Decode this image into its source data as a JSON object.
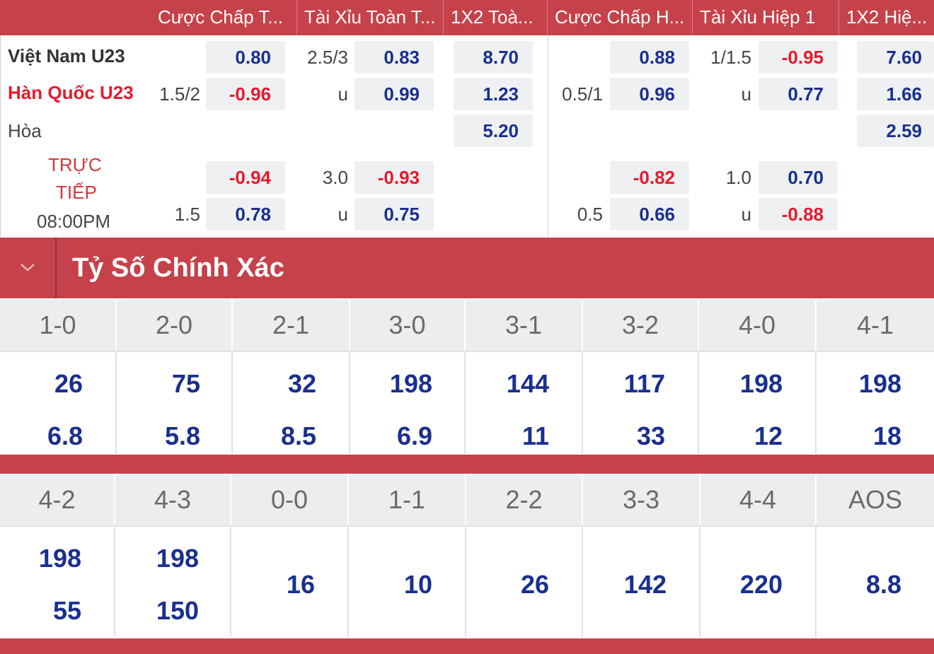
{
  "header": {
    "columns": [
      "Cược Chấp T...",
      "Tài Xỉu Toàn T...",
      "1X2 Toà...",
      "Cược Chấp H...",
      "Tài Xỉu Hiệp 1",
      "1X2 Hiệ..."
    ]
  },
  "match": {
    "home": "Việt Nam U23",
    "away": "Hàn Quốc U23",
    "draw_label": "Hòa",
    "status_line1": "TRỰC",
    "status_line2": "TIẾP",
    "time": "08:00PM",
    "ft_handicap_line": "1.5/2",
    "ft_handicap_home": "0.80",
    "ft_handicap_away": "-0.96",
    "ft_ou_line": "2.5/3",
    "ft_ou_over": "0.83",
    "ft_ou_u": "u",
    "ft_ou_under": "0.99",
    "ft_1x2_home": "8.70",
    "ft_1x2_away": "1.23",
    "ft_1x2_draw": "5.20",
    "h1_handicap_line": "0.5/1",
    "h1_handicap_home": "0.88",
    "h1_handicap_away": "0.96",
    "h1_ou_line": "1/1.5",
    "h1_ou_over": "-0.95",
    "h1_ou_u": "u",
    "h1_ou_under": "0.77",
    "h1_1x2_home": "7.60",
    "h1_1x2_away": "1.66",
    "h1_1x2_draw": "2.59",
    "alt": {
      "ft_handicap_line": "1.5",
      "ft_handicap_home": "-0.94",
      "ft_handicap_away": "0.78",
      "ft_ou_line": "3.0",
      "ft_ou_over": "-0.93",
      "ft_ou_u": "u",
      "ft_ou_under": "0.75",
      "h1_handicap_line": "0.5",
      "h1_handicap_home": "-0.82",
      "h1_handicap_away": "0.66",
      "h1_ou_line": "1.0",
      "h1_ou_over": "0.70",
      "h1_ou_u": "u",
      "h1_ou_under": "-0.88"
    }
  },
  "section": {
    "title": "Tỷ Số Chính Xác",
    "toggle_icon": "chevron-down-icon"
  },
  "correct_score": {
    "row1": [
      {
        "score": "1-0",
        "top": "26",
        "bottom": "6.8"
      },
      {
        "score": "2-0",
        "top": "75",
        "bottom": "5.8"
      },
      {
        "score": "2-1",
        "top": "32",
        "bottom": "8.5"
      },
      {
        "score": "3-0",
        "top": "198",
        "bottom": "6.9"
      },
      {
        "score": "3-1",
        "top": "144",
        "bottom": "11"
      },
      {
        "score": "3-2",
        "top": "117",
        "bottom": "33"
      },
      {
        "score": "4-0",
        "top": "198",
        "bottom": "12"
      },
      {
        "score": "4-1",
        "top": "198",
        "bottom": "18"
      }
    ],
    "row2": [
      {
        "score": "4-2",
        "top": "198",
        "bottom": "55"
      },
      {
        "score": "4-3",
        "top": "198",
        "bottom": "150"
      },
      {
        "score": "0-0",
        "single": "16"
      },
      {
        "score": "1-1",
        "single": "10"
      },
      {
        "score": "2-2",
        "single": "26"
      },
      {
        "score": "3-3",
        "single": "142"
      },
      {
        "score": "4-4",
        "single": "220"
      },
      {
        "score": "AOS",
        "single": "8.8"
      }
    ]
  }
}
